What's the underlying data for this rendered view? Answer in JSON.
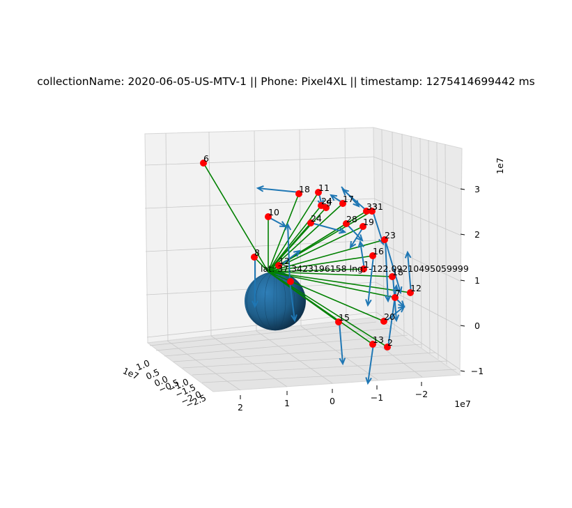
{
  "title": "collectionName: 2020-06-05-US-MTV-1  || Phone: Pixel4XL ||  timestamp: 1275414699442 ms",
  "colors": {
    "satellite": "#ff0000",
    "line_of_sight": "#008000",
    "velocity_arrow": "#1f77b4",
    "earth": "#1f5f8b",
    "pane": "#f2f2f2",
    "grid": "#c8c8c8"
  },
  "chart_data": {
    "type": "scatter3d",
    "title": "collectionName: 2020-06-05-US-MTV-1  || Phone: Pixel4XL ||  timestamp: 1275414699442 ms",
    "axes": {
      "x": {
        "ticks": [
          "2",
          "1",
          "0",
          "−1",
          "−2"
        ],
        "offset": "1e7"
      },
      "y": {
        "ticks": [
          "1.0",
          "0.5",
          "0.0",
          "−0.5",
          "−1.0",
          "−1.5",
          "−2.0",
          "−2.5"
        ],
        "offset": "1e7"
      },
      "z": {
        "ticks": [
          "3",
          "2",
          "1",
          "0",
          "−1"
        ],
        "offset": "1e7"
      }
    },
    "receiver_label": "lat: 37.3423196158 lng: -122.09210495059999",
    "satellite_labels": [
      "6",
      "18",
      "11",
      "24",
      "9",
      "17",
      "33",
      "31",
      "10",
      "24",
      "28",
      "19",
      "23",
      "8",
      "12",
      "16",
      "1",
      "18",
      "12",
      "7",
      "20",
      "15",
      "13",
      "2"
    ]
  }
}
